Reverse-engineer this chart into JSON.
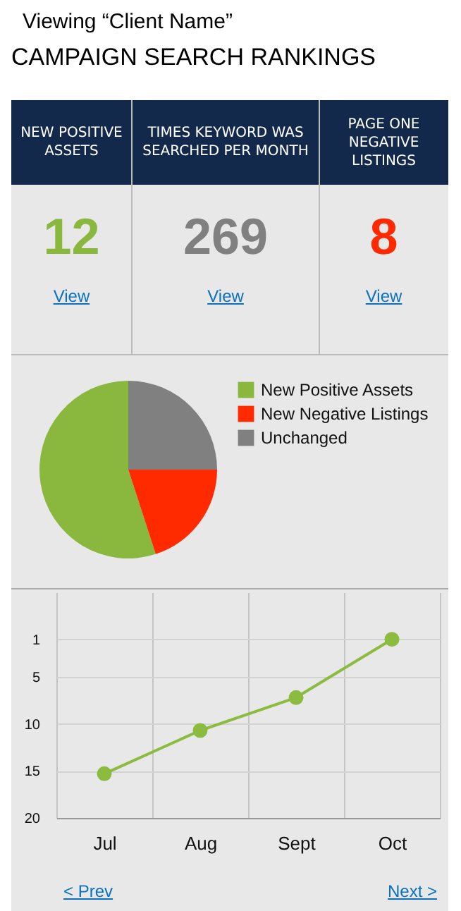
{
  "chart_data": [
    {
      "type": "other",
      "title": "Viewing “Client Name”",
      "subtitle": "CAMPAIGN SEARCH RANKINGS",
      "annotations": [
        "NEW POSITIVE ASSETS",
        "12",
        "View",
        "TIMES KEYWORD WAS SEARCHED PER MONTH",
        "269",
        "View",
        "PAGE ONE NEGATIVE LISTINGS",
        "8",
        "View"
      ],
      "colors": [
        "#8ab83e",
        "#808080",
        "#ff2a00"
      ]
    },
    {
      "type": "pie",
      "categories": [
        "New Positive Assets",
        "New Negative Listings",
        "Unchanged"
      ],
      "values": [
        55,
        20,
        25
      ],
      "colors": [
        "#8ab83e",
        "#ff2a00",
        "#808080"
      ],
      "legend": "right"
    },
    {
      "type": "line",
      "categories": [
        "Jul",
        "Aug",
        "Sept",
        "Oct"
      ],
      "series": [
        {
          "color": "#8bbb3f",
          "values": [
            15.3,
            10.7,
            7.2,
            1
          ]
        }
      ],
      "ylim": [
        20,
        -4
      ],
      "yticks": [
        20,
        15,
        10,
        5,
        1
      ],
      "grid": true,
      "marker": "circle",
      "annotations": [
        "< Prev",
        "Next >"
      ]
    }
  ]
}
